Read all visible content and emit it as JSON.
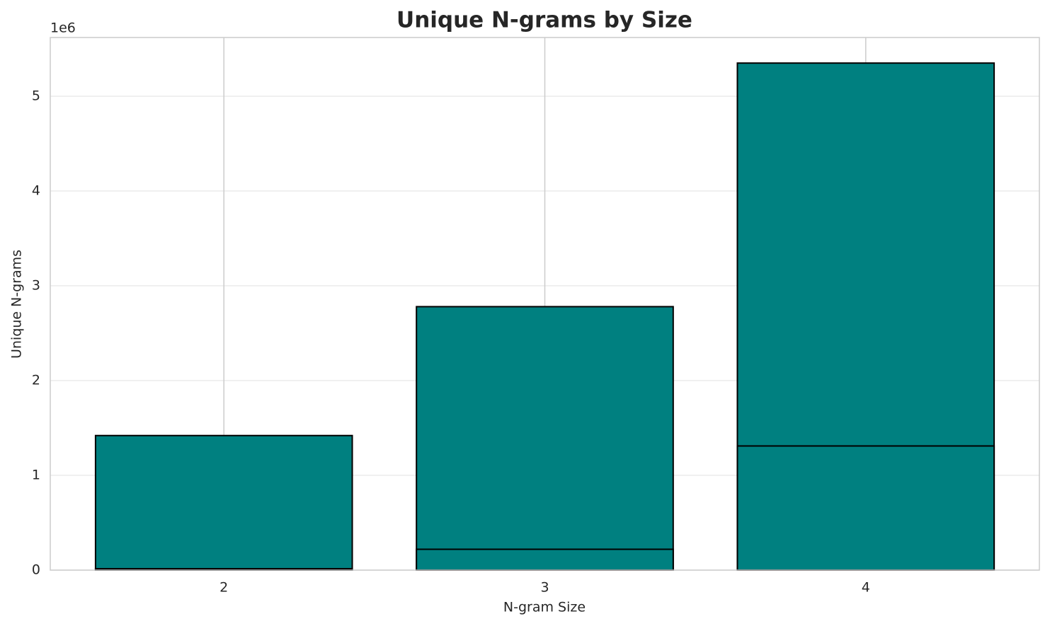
{
  "chart_data": {
    "type": "bar",
    "title": "Unique N-grams by Size",
    "x_label": "N-gram Size",
    "y_label": "Unique N-grams",
    "y_offset_label": "1e6",
    "categories": [
      "2",
      "3",
      "4"
    ],
    "series": [
      {
        "color": "#008080",
        "values": [
          1420000,
          2780000,
          5350000
        ]
      },
      {
        "color": "#008080",
        "values": [
          15000,
          220000,
          1310000
        ]
      }
    ],
    "ylim": [
      0,
      5620000
    ],
    "yticks": [
      0,
      {
        "value": 1000000,
        "label": "1"
      },
      {
        "value": 2000000,
        "label": "2"
      },
      {
        "value": 3000000,
        "label": "3"
      },
      {
        "value": 4000000,
        "label": "4"
      },
      {
        "value": 5000000,
        "label": "5"
      }
    ],
    "grid": true
  }
}
